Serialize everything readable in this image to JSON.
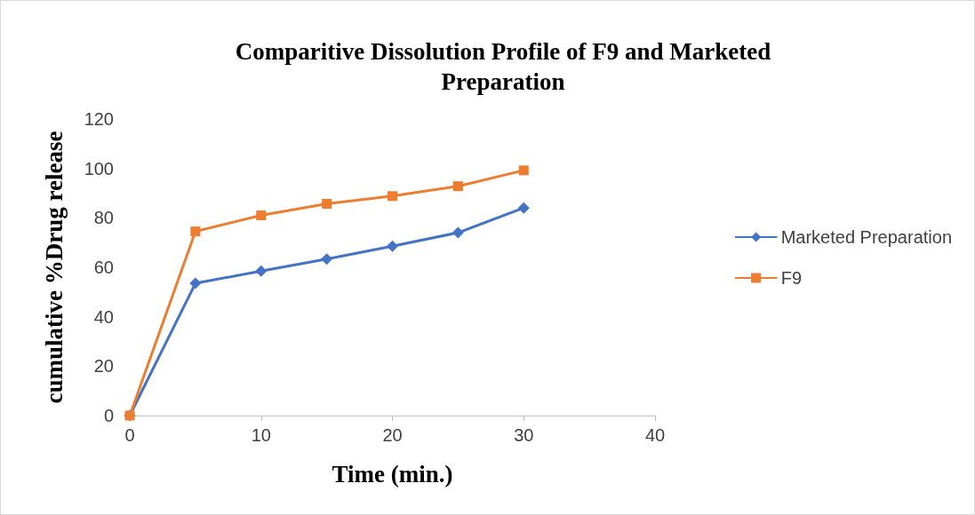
{
  "chart_data": {
    "type": "line",
    "title": "Comparitive Dissolution Profile of F9 and Marketed\nPreparation",
    "xlabel": "Time (min.)",
    "ylabel": "cumulative %Drug release",
    "x": [
      0,
      5,
      10,
      15,
      20,
      25,
      30
    ],
    "series": [
      {
        "name": "Marketed Preparation",
        "color": "#4472c4",
        "marker": "diamond",
        "values": [
          0,
          53.5,
          58.5,
          63.3,
          68.5,
          74,
          84
        ]
      },
      {
        "name": "F9",
        "color": "#ed7d31",
        "marker": "square",
        "values": [
          0,
          74.5,
          81,
          85.7,
          88.8,
          92.8,
          99.2
        ]
      }
    ],
    "xlim": [
      0,
      40
    ],
    "xticks": [
      0,
      10,
      20,
      30,
      40
    ],
    "ylim": [
      0,
      120
    ],
    "yticks": [
      0,
      20,
      40,
      60,
      80,
      100,
      120
    ],
    "grid": false,
    "legend": "right",
    "line_style": "solid"
  }
}
